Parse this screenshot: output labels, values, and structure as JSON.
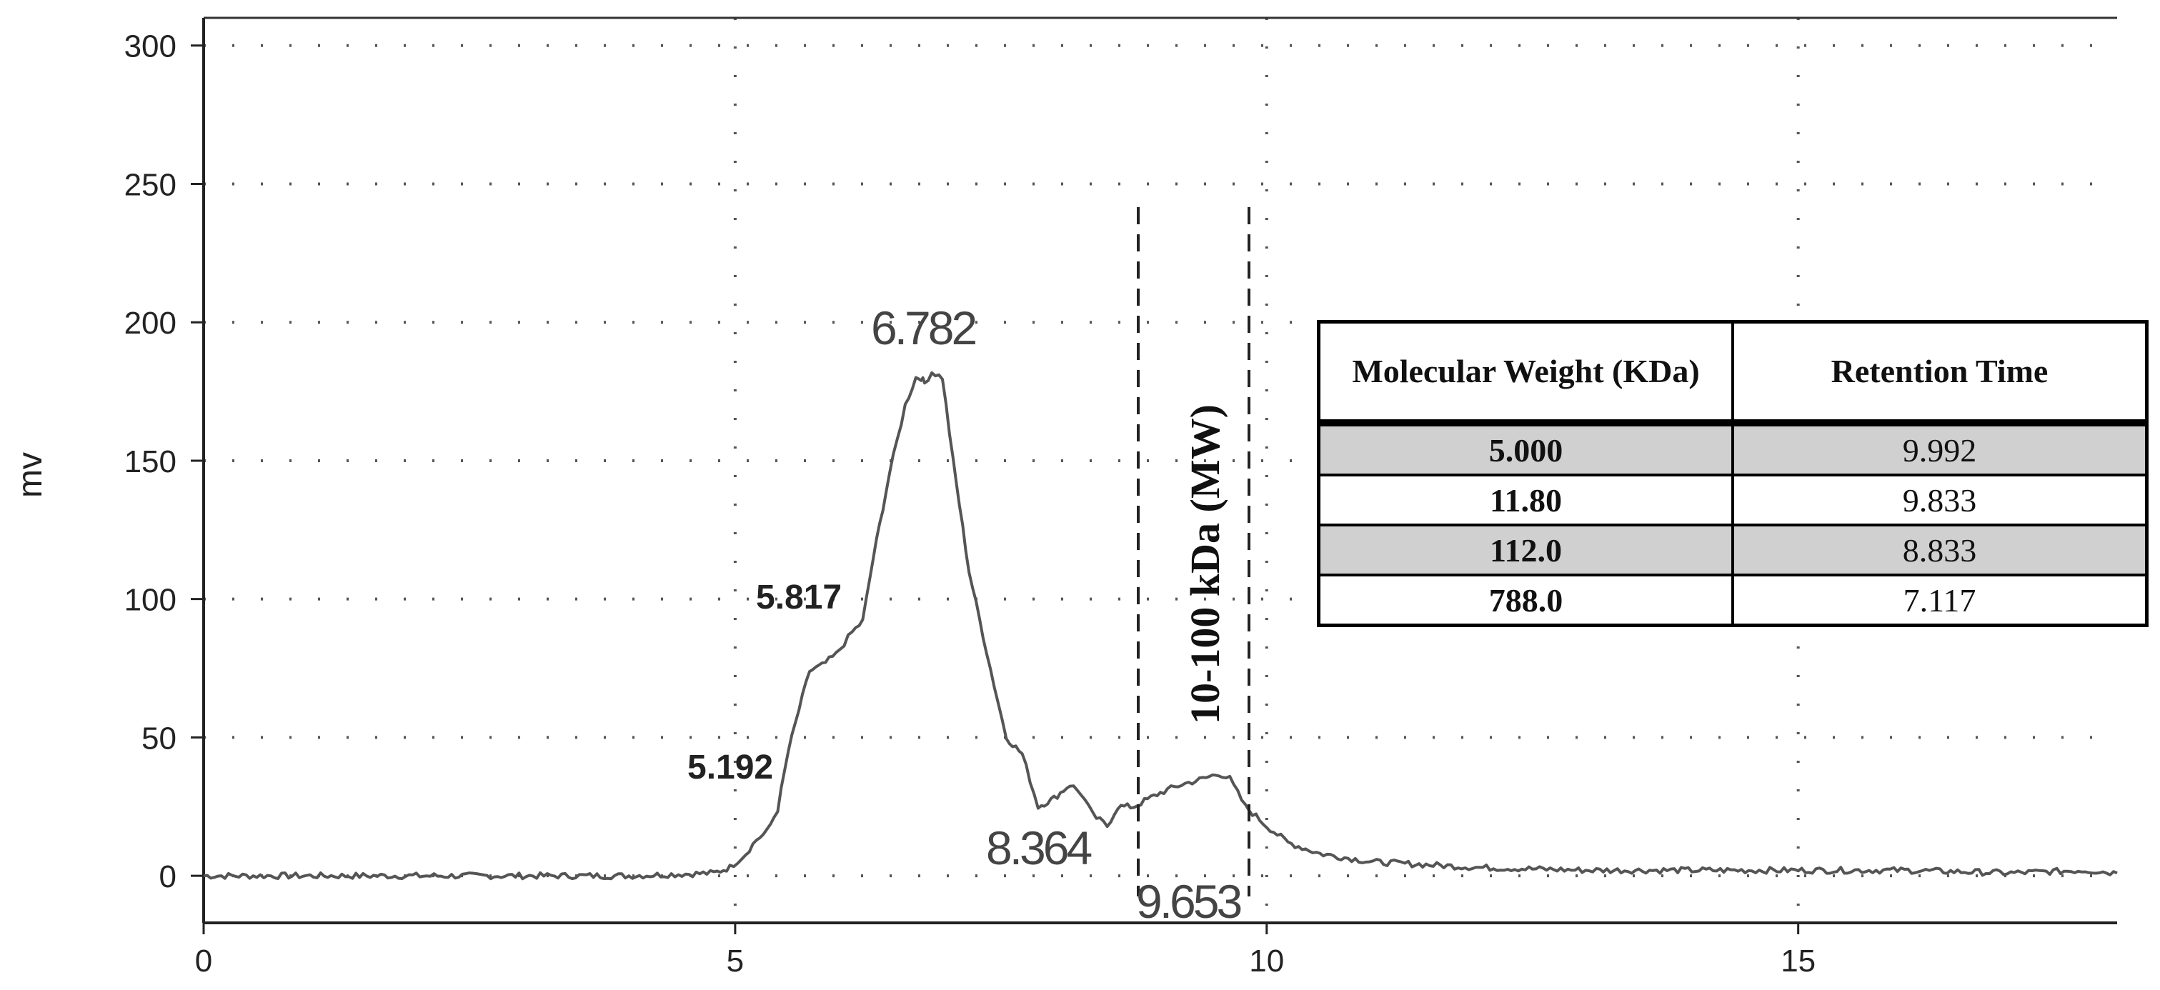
{
  "chart_data": {
    "type": "line",
    "title": "",
    "xlabel": "",
    "ylabel": "mv",
    "xlim": [
      0,
      18
    ],
    "ylim": [
      -17,
      310
    ],
    "x_ticks": [
      "0",
      "5",
      "10",
      "15"
    ],
    "y_ticks": [
      "0",
      "50",
      "100",
      "150",
      "200",
      "250",
      "300"
    ],
    "grid": true,
    "series": [
      {
        "x": [
          0,
          1,
          2,
          3,
          4,
          4.8,
          4.95,
          5.1,
          5.2,
          5.3,
          5.4,
          5.5,
          5.6,
          5.7,
          5.817,
          5.95,
          6.1,
          6.2,
          6.3,
          6.45,
          6.6,
          6.7,
          6.75,
          6.782,
          6.85,
          6.95,
          7.05,
          7.2,
          7.4,
          7.55,
          7.7,
          7.85,
          8.0,
          8.15,
          8.25,
          8.364,
          8.5,
          8.6,
          8.75,
          8.85,
          9.0,
          9.2,
          9.4,
          9.55,
          9.653,
          9.8,
          10.0,
          10.2,
          10.5,
          11,
          12,
          13,
          14,
          15,
          16,
          17,
          17.7,
          18
        ],
        "values": [
          0,
          0,
          0,
          0,
          0,
          1,
          3,
          8,
          13,
          16,
          24,
          45,
          60,
          74,
          76,
          80,
          88,
          92,
          115,
          145,
          170,
          180,
          180,
          178,
          182,
          180,
          150,
          110,
          75,
          50,
          44,
          25,
          28,
          33,
          30,
          22,
          18,
          25,
          25,
          27,
          30,
          33,
          35,
          37,
          35,
          25,
          18,
          12,
          8,
          5,
          3,
          2,
          2,
          2,
          2,
          1,
          2,
          1
        ]
      }
    ],
    "peak_labels": [
      "5.192",
      "5.817",
      "6.782",
      "8.364",
      "9.653"
    ],
    "region_label": "10-100 kDa (MW)",
    "table": {
      "headers": [
        "Molecular Weight (KDa)",
        "Retention Time"
      ],
      "rows": [
        [
          "5.000",
          "9.992"
        ],
        [
          "11.80",
          "9.833"
        ],
        [
          "112.0",
          "8.833"
        ],
        [
          "788.0",
          "7.117"
        ]
      ]
    },
    "colors": {
      "line": "#555555",
      "grid": "#555555",
      "row_shade": "#d0d0d0"
    }
  }
}
